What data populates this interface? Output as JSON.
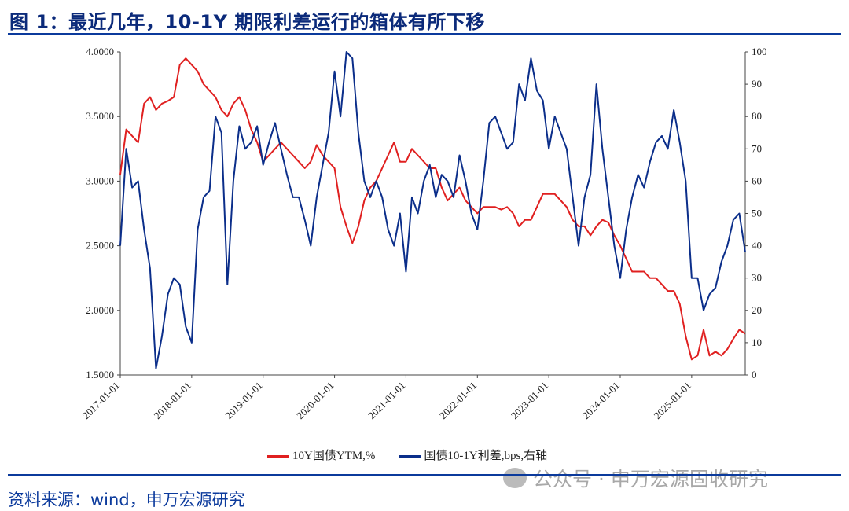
{
  "title": "图 1：最近几年，10-1Y 期限利差运行的箱体有所下移",
  "source": "资料来源：wind，申万宏源研究",
  "watermark": "公众号 · 申万宏源固收研究",
  "colors": {
    "title": "#0b2a7a",
    "rule": "#0b3a9c",
    "ytm": "#e02020",
    "spread": "#0b2e8a"
  },
  "chart_data": {
    "type": "line",
    "xlim": [
      "2017-01",
      "2025-10"
    ],
    "x_ticks": [
      "2017-01-01",
      "2018-01-01",
      "2019-01-01",
      "2020-01-01",
      "2021-01-01",
      "2022-01-01",
      "2023-01-01",
      "2024-01-01",
      "2025-01-01"
    ],
    "y_left": {
      "lim": [
        1.5,
        4.0
      ],
      "ticks": [
        "1.5000",
        "2.0000",
        "2.5000",
        "3.0000",
        "3.5000",
        "4.0000"
      ]
    },
    "y_right": {
      "lim": [
        0,
        100
      ],
      "ticks": [
        "0",
        "10",
        "20",
        "30",
        "40",
        "50",
        "60",
        "70",
        "80",
        "90",
        "100"
      ]
    },
    "grid": false,
    "legend": "bottom",
    "x": [
      "2017-01",
      "2017-02",
      "2017-03",
      "2017-04",
      "2017-05",
      "2017-06",
      "2017-07",
      "2017-08",
      "2017-09",
      "2017-10",
      "2017-11",
      "2017-12",
      "2018-01",
      "2018-02",
      "2018-03",
      "2018-04",
      "2018-05",
      "2018-06",
      "2018-07",
      "2018-08",
      "2018-09",
      "2018-10",
      "2018-11",
      "2018-12",
      "2019-01",
      "2019-02",
      "2019-03",
      "2019-04",
      "2019-05",
      "2019-06",
      "2019-07",
      "2019-08",
      "2019-09",
      "2019-10",
      "2019-11",
      "2019-12",
      "2020-01",
      "2020-02",
      "2020-03",
      "2020-04",
      "2020-05",
      "2020-06",
      "2020-07",
      "2020-08",
      "2020-09",
      "2020-10",
      "2020-11",
      "2020-12",
      "2021-01",
      "2021-02",
      "2021-03",
      "2021-04",
      "2021-05",
      "2021-06",
      "2021-07",
      "2021-08",
      "2021-09",
      "2021-10",
      "2021-11",
      "2021-12",
      "2022-01",
      "2022-02",
      "2022-03",
      "2022-04",
      "2022-05",
      "2022-06",
      "2022-07",
      "2022-08",
      "2022-09",
      "2022-10",
      "2022-11",
      "2022-12",
      "2023-01",
      "2023-02",
      "2023-03",
      "2023-04",
      "2023-05",
      "2023-06",
      "2023-07",
      "2023-08",
      "2023-09",
      "2023-10",
      "2023-11",
      "2023-12",
      "2024-01",
      "2024-02",
      "2024-03",
      "2024-04",
      "2024-05",
      "2024-06",
      "2024-07",
      "2024-08",
      "2024-09",
      "2024-10",
      "2024-11",
      "2024-12",
      "2025-01",
      "2025-02",
      "2025-03",
      "2025-04",
      "2025-05",
      "2025-06",
      "2025-07",
      "2025-08",
      "2025-09",
      "2025-10"
    ],
    "series": [
      {
        "name": "10Y国债YTM,%",
        "axis": "left",
        "color": "#e02020",
        "values": [
          3.05,
          3.4,
          3.35,
          3.3,
          3.6,
          3.65,
          3.55,
          3.6,
          3.62,
          3.65,
          3.9,
          3.95,
          3.9,
          3.85,
          3.75,
          3.7,
          3.65,
          3.55,
          3.5,
          3.6,
          3.65,
          3.55,
          3.4,
          3.3,
          3.15,
          3.2,
          3.25,
          3.3,
          3.25,
          3.2,
          3.15,
          3.1,
          3.15,
          3.28,
          3.2,
          3.15,
          3.1,
          2.8,
          2.65,
          2.52,
          2.65,
          2.85,
          2.95,
          3.0,
          3.1,
          3.2,
          3.3,
          3.15,
          3.15,
          3.25,
          3.2,
          3.15,
          3.1,
          3.1,
          2.95,
          2.85,
          2.9,
          2.95,
          2.85,
          2.8,
          2.75,
          2.8,
          2.8,
          2.8,
          2.78,
          2.8,
          2.75,
          2.65,
          2.7,
          2.7,
          2.8,
          2.9,
          2.9,
          2.9,
          2.85,
          2.8,
          2.7,
          2.65,
          2.65,
          2.58,
          2.65,
          2.7,
          2.68,
          2.58,
          2.5,
          2.4,
          2.3,
          2.3,
          2.3,
          2.25,
          2.25,
          2.2,
          2.15,
          2.15,
          2.05,
          1.8,
          1.62,
          1.65,
          1.85,
          1.65,
          1.68,
          1.65,
          1.7,
          1.78,
          1.85,
          1.82
        ]
      },
      {
        "name": "国债10-1Y利差,bps,右轴",
        "axis": "right",
        "color": "#0b2e8a",
        "values": [
          40,
          70,
          58,
          60,
          45,
          33,
          2,
          12,
          25,
          30,
          28,
          15,
          10,
          45,
          55,
          57,
          80,
          75,
          28,
          60,
          77,
          70,
          72,
          77,
          65,
          72,
          78,
          70,
          62,
          55,
          55,
          48,
          40,
          55,
          65,
          75,
          94,
          80,
          100,
          98,
          75,
          60,
          55,
          60,
          55,
          45,
          40,
          50,
          32,
          55,
          50,
          60,
          65,
          55,
          62,
          60,
          55,
          68,
          60,
          50,
          45,
          60,
          78,
          80,
          75,
          70,
          72,
          90,
          85,
          98,
          88,
          85,
          70,
          80,
          75,
          70,
          55,
          40,
          55,
          62,
          90,
          70,
          55,
          40,
          30,
          45,
          55,
          62,
          58,
          66,
          72,
          74,
          70,
          82,
          72,
          60,
          30,
          30,
          20,
          25,
          27,
          35,
          40,
          48,
          50,
          38
        ]
      }
    ]
  }
}
